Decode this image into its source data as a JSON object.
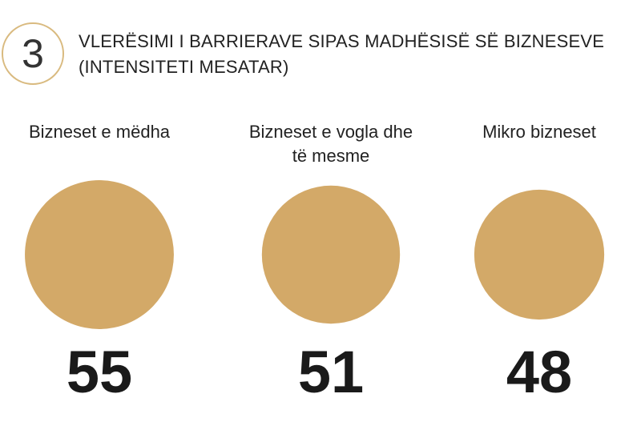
{
  "chart_data": {
    "type": "bubble",
    "number": "3",
    "title": "VLERËSIMI I BARRIERAVE SIPAS MADHËSISË SË BIZNESEVE (INTENSITETI MESATAR)",
    "categories": [
      "Bizneset e mëdha",
      "Bizneset e vogla dhe të mesme",
      "Mikro bizneset"
    ],
    "values": [
      55,
      51,
      48
    ],
    "color": "#d3a968"
  }
}
